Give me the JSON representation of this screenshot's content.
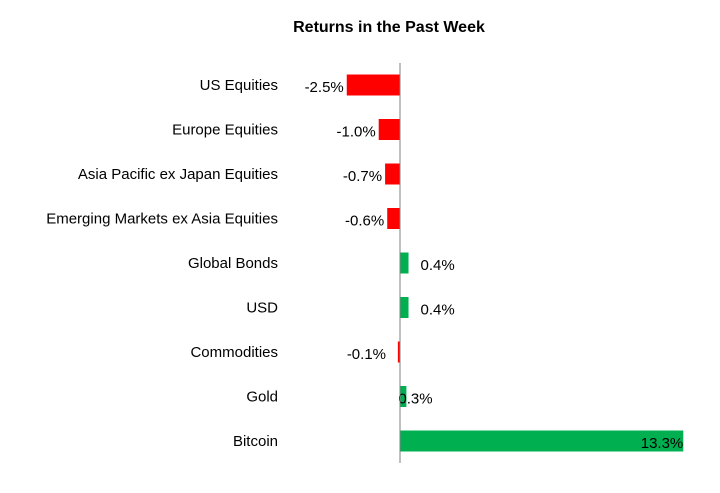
{
  "chart_data": {
    "type": "bar",
    "orientation": "horizontal",
    "title": "Returns in the Past Week",
    "xlabel": "",
    "ylabel": "",
    "categories": [
      "US Equities",
      "Europe Equities",
      "Asia Pacific ex Japan Equities",
      "Emerging Markets ex Asia Equities",
      "Global Bonds",
      "USD",
      "Commodities",
      "Gold",
      "Bitcoin"
    ],
    "values": [
      -2.5,
      -1.0,
      -0.7,
      -0.6,
      0.4,
      0.4,
      -0.1,
      0.3,
      13.3
    ],
    "value_labels": [
      "-2.5%",
      "-1.0%",
      "-0.7%",
      "-0.6%",
      "0.4%",
      "0.4%",
      "-0.1%",
      "0.3%",
      "13.3%"
    ],
    "xlim": [
      -4.0,
      14.0
    ],
    "colors": {
      "negative": "#ff0000",
      "positive": "#00b050"
    },
    "grid": false,
    "legend": "none"
  }
}
